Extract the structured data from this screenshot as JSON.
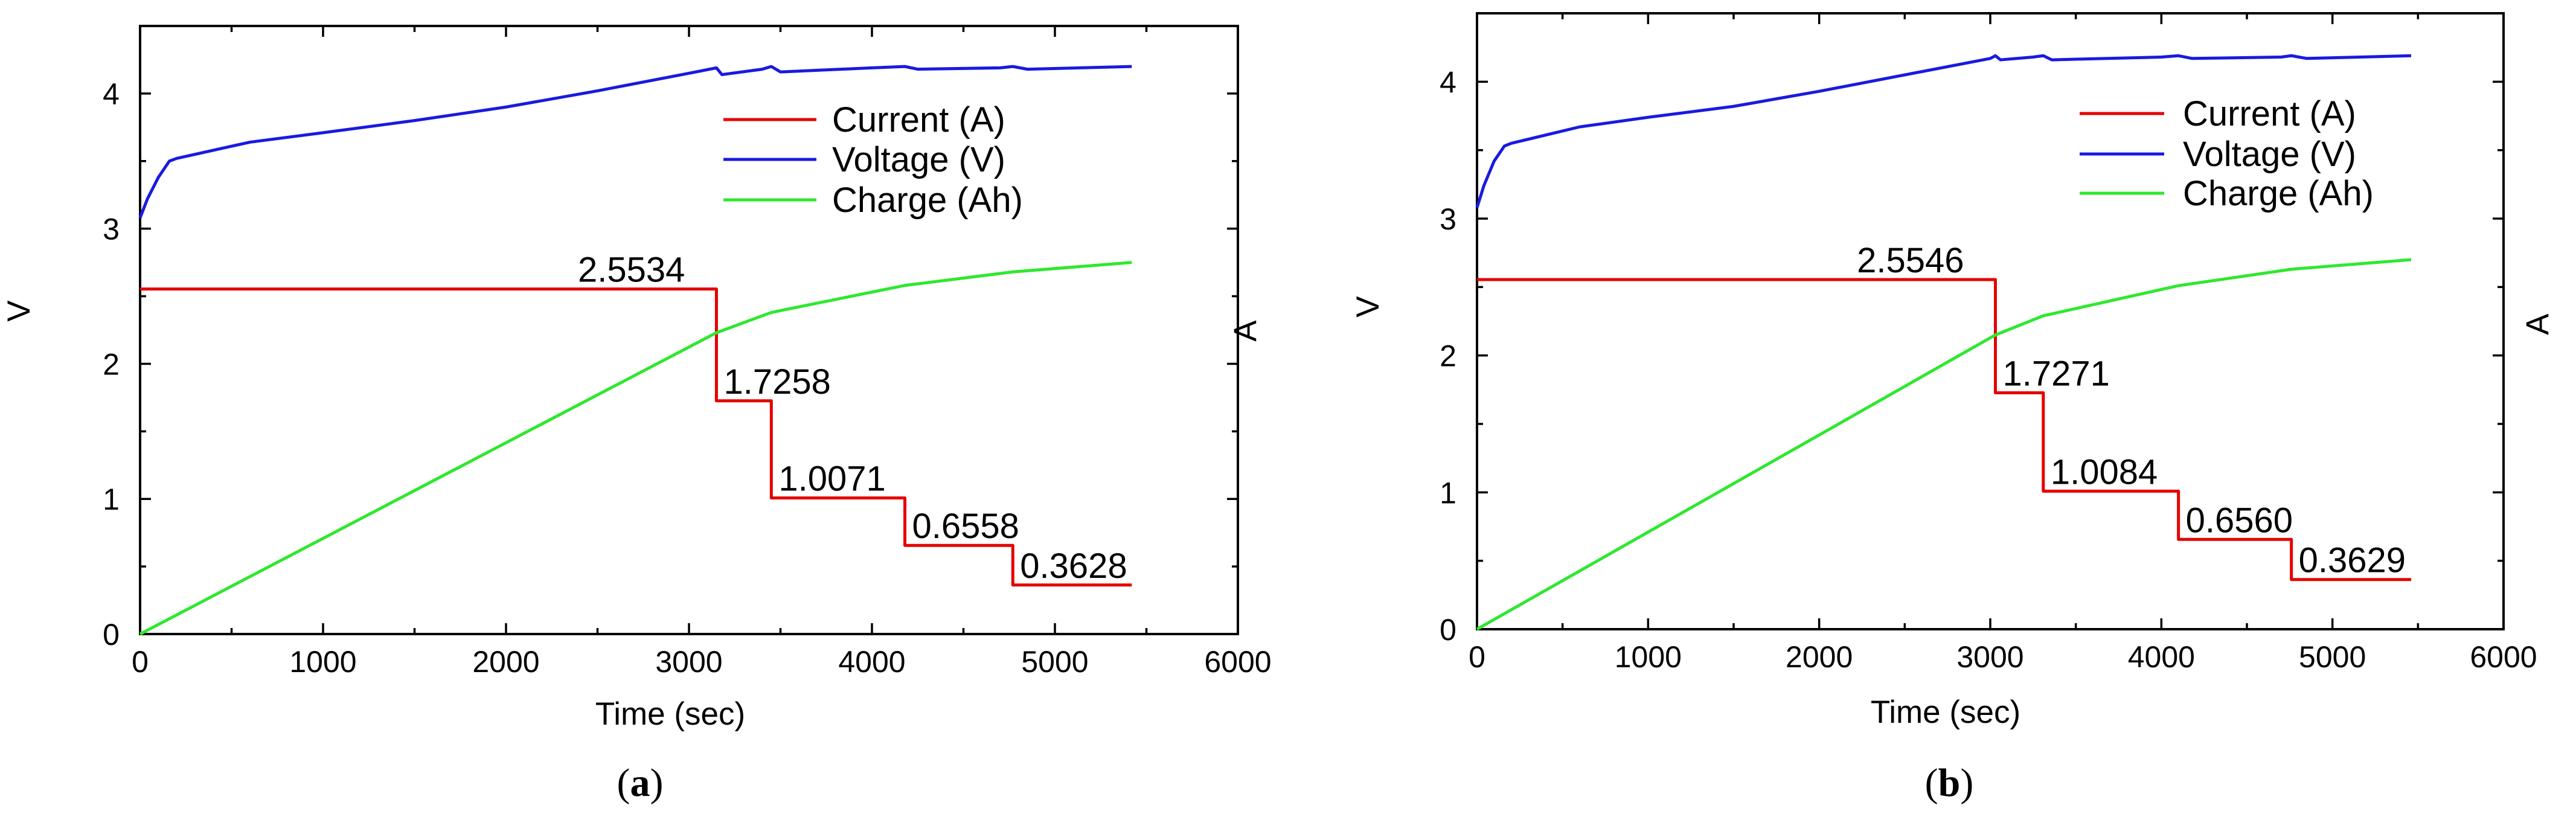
{
  "chart_data": [
    {
      "type": "line",
      "panel_label": "(a)",
      "panel_letter": "a",
      "xlabel": "Time (sec)",
      "ylabel_left": "V",
      "ylabel_right": "A",
      "xlim": [
        0,
        6000
      ],
      "ylim": [
        0,
        4.5
      ],
      "x_ticks": [
        0,
        1000,
        2000,
        3000,
        4000,
        5000,
        6000
      ],
      "y_ticks": [
        0,
        1,
        2,
        3,
        4
      ],
      "legend_position": "upper-right",
      "series": [
        {
          "name": "Current (A)",
          "color": "#e60000",
          "points": [
            [
              0,
              2.5534
            ],
            [
              3150,
              2.5534
            ],
            [
              3150,
              1.7258
            ],
            [
              3450,
              1.7258
            ],
            [
              3450,
              1.0071
            ],
            [
              4180,
              1.0071
            ],
            [
              4180,
              0.6558
            ],
            [
              4770,
              0.6558
            ],
            [
              4770,
              0.3628
            ],
            [
              5420,
              0.3628
            ]
          ]
        },
        {
          "name": "Voltage (V)",
          "color": "#1a1ae0",
          "points": [
            [
              0,
              3.08
            ],
            [
              40,
              3.22
            ],
            [
              100,
              3.38
            ],
            [
              160,
              3.5
            ],
            [
              200,
              3.52
            ],
            [
              600,
              3.64
            ],
            [
              1000,
              3.71
            ],
            [
              1500,
              3.8
            ],
            [
              2000,
              3.9
            ],
            [
              2500,
              4.02
            ],
            [
              3000,
              4.15
            ],
            [
              3150,
              4.19
            ],
            [
              3180,
              4.14
            ],
            [
              3400,
              4.18
            ],
            [
              3450,
              4.2
            ],
            [
              3500,
              4.16
            ],
            [
              4000,
              4.19
            ],
            [
              4180,
              4.2
            ],
            [
              4250,
              4.18
            ],
            [
              4700,
              4.19
            ],
            [
              4770,
              4.2
            ],
            [
              4850,
              4.18
            ],
            [
              5420,
              4.2
            ]
          ]
        },
        {
          "name": "Charge (Ah)",
          "color": "#2ee82e",
          "points": [
            [
              0,
              0
            ],
            [
              3150,
              2.23
            ],
            [
              3450,
              2.38
            ],
            [
              4180,
              2.58
            ],
            [
              4770,
              2.68
            ],
            [
              5420,
              2.75
            ]
          ]
        }
      ],
      "annotations": [
        {
          "text": "2.5534",
          "x": 3150,
          "y": 2.5534,
          "anchor": "end-left"
        },
        {
          "text": "1.7258",
          "x": 3150,
          "y": 1.7258,
          "anchor": "start"
        },
        {
          "text": "1.0071",
          "x": 3450,
          "y": 1.0071,
          "anchor": "start"
        },
        {
          "text": "0.6558",
          "x": 4180,
          "y": 0.6558,
          "anchor": "start"
        },
        {
          "text": "0.3628",
          "x": 4770,
          "y": 0.3628,
          "anchor": "start"
        }
      ]
    },
    {
      "type": "line",
      "panel_label": "(b)",
      "panel_letter": "b",
      "xlabel": "Time (sec)",
      "ylabel_left": "V",
      "ylabel_right": "A",
      "xlim": [
        0,
        6000
      ],
      "ylim": [
        0,
        4.5
      ],
      "x_ticks": [
        0,
        1000,
        2000,
        3000,
        4000,
        5000,
        6000
      ],
      "y_ticks": [
        0,
        1,
        2,
        3,
        4
      ],
      "legend_position": "upper-right",
      "series": [
        {
          "name": "Current (A)",
          "color": "#e60000",
          "points": [
            [
              0,
              2.5546
            ],
            [
              3030,
              2.5546
            ],
            [
              3030,
              1.7271
            ],
            [
              3310,
              1.7271
            ],
            [
              3310,
              1.0084
            ],
            [
              4100,
              1.0084
            ],
            [
              4100,
              0.656
            ],
            [
              4760,
              0.656
            ],
            [
              4760,
              0.3629
            ],
            [
              5460,
              0.3629
            ]
          ]
        },
        {
          "name": "Voltage (V)",
          "color": "#1a1ae0",
          "points": [
            [
              0,
              3.08
            ],
            [
              40,
              3.24
            ],
            [
              100,
              3.42
            ],
            [
              160,
              3.53
            ],
            [
              200,
              3.55
            ],
            [
              600,
              3.67
            ],
            [
              1000,
              3.74
            ],
            [
              1500,
              3.82
            ],
            [
              2000,
              3.93
            ],
            [
              2500,
              4.05
            ],
            [
              3000,
              4.17
            ],
            [
              3030,
              4.19
            ],
            [
              3060,
              4.16
            ],
            [
              3250,
              4.18
            ],
            [
              3310,
              4.19
            ],
            [
              3360,
              4.16
            ],
            [
              4000,
              4.18
            ],
            [
              4100,
              4.19
            ],
            [
              4180,
              4.17
            ],
            [
              4700,
              4.18
            ],
            [
              4760,
              4.19
            ],
            [
              4850,
              4.17
            ],
            [
              5460,
              4.19
            ]
          ]
        },
        {
          "name": "Charge (Ah)",
          "color": "#2ee82e",
          "points": [
            [
              0,
              0
            ],
            [
              3030,
              2.15
            ],
            [
              3310,
              2.29
            ],
            [
              4100,
              2.51
            ],
            [
              4760,
              2.63
            ],
            [
              5460,
              2.7
            ]
          ]
        }
      ],
      "annotations": [
        {
          "text": "2.5546",
          "x": 3030,
          "y": 2.5546,
          "anchor": "end-left"
        },
        {
          "text": "1.7271",
          "x": 3030,
          "y": 1.7271,
          "anchor": "start"
        },
        {
          "text": "1.0084",
          "x": 3310,
          "y": 1.0084,
          "anchor": "start"
        },
        {
          "text": "0.6560",
          "x": 4100,
          "y": 0.656,
          "anchor": "start"
        },
        {
          "text": "0.3629",
          "x": 4760,
          "y": 0.3629,
          "anchor": "start"
        }
      ]
    }
  ]
}
